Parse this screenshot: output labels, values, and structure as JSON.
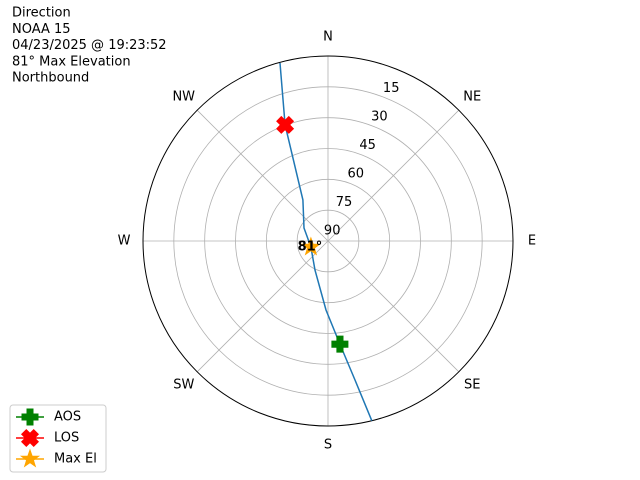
{
  "chart_data": {
    "type": "polar",
    "title_lines": [
      "Direction",
      "NOAA 15",
      "04/23/2025 @ 19:23:52",
      "81° Max Elevation",
      "Northbound"
    ],
    "xlim": [
      0,
      360
    ],
    "xticks": [
      {
        "value": 0,
        "label": "N"
      },
      {
        "value": 45,
        "label": "NE"
      },
      {
        "value": 90,
        "label": "E"
      },
      {
        "value": 135,
        "label": "SE"
      },
      {
        "value": 180,
        "label": "S"
      },
      {
        "value": 225,
        "label": "SW"
      },
      {
        "value": 270,
        "label": "W"
      },
      {
        "value": 315,
        "label": "NW"
      }
    ],
    "ylim": [
      90,
      0
    ],
    "yticks": [
      15,
      30,
      45,
      60,
      75,
      90
    ],
    "grid": true,
    "legend": "lower left",
    "series": [
      {
        "color": "#1f77b4",
        "marker": "line",
        "x": [
          344.9,
          339.7,
          328.6,
          298.4,
          250.6,
          204.1,
          181.7,
          173.4,
          169,
          166.3
        ],
        "values": [
          0.3,
          29.8,
          66.6,
          76.7,
          81.2,
          74.5,
          56.4,
          39.5,
          21.1,
          0
        ]
      },
      {
        "name": "AOS",
        "color": "green",
        "marker": "plus",
        "x": [
          173.4
        ],
        "values": [
          39.5
        ]
      },
      {
        "name": "LOS",
        "color": "red",
        "marker": "cross",
        "x": [
          339.7
        ],
        "values": [
          29.8
        ]
      },
      {
        "name": "Max El",
        "color": "orange",
        "marker": "star",
        "x": [
          250.6
        ],
        "values": [
          81.2
        ]
      }
    ],
    "annotations": [
      {
        "text": "81°",
        "x": 250.6,
        "y": 81.2
      }
    ]
  }
}
